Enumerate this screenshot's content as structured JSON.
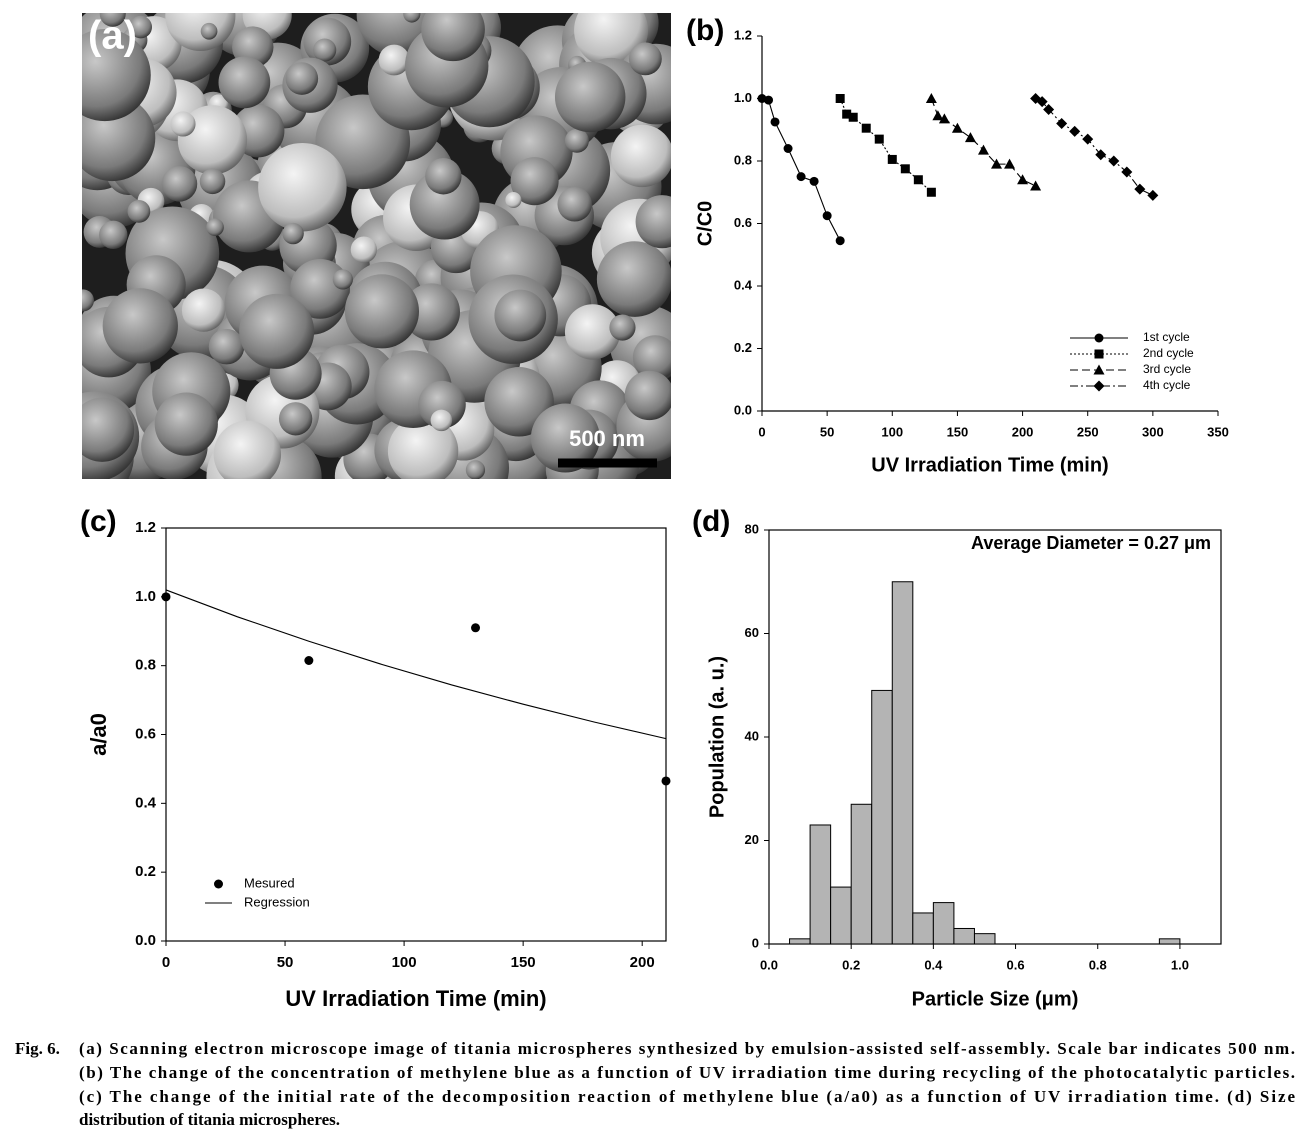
{
  "image": {
    "label": "(a)",
    "scale_bar": "500 nm"
  },
  "chart_data": [
    {
      "type": "line",
      "label": "(b)",
      "x_label": "UV Irradiation Time (min)",
      "y_label": "C/C0",
      "xlim": [
        0,
        350
      ],
      "ylim": [
        0,
        1.2
      ],
      "xticks": [
        0,
        50,
        100,
        150,
        200,
        250,
        300,
        350
      ],
      "yticks": [
        {
          "value": 0,
          "label": "0.0"
        },
        0.2,
        0.4,
        0.6,
        0.8,
        {
          "value": 1,
          "label": "1.0"
        },
        1.2
      ],
      "legend": "lower right",
      "series": [
        {
          "name": "1st cycle",
          "color": "#000000",
          "marker": "circle",
          "line_style": "solid",
          "x": [
            0,
            5,
            10,
            20,
            30,
            40,
            50,
            60
          ],
          "values": [
            1.0,
            0.995,
            0.925,
            0.84,
            0.75,
            0.735,
            0.625,
            0.545
          ]
        },
        {
          "name": "2nd cycle",
          "color": "#000000",
          "marker": "square",
          "line_style": "dotted",
          "x": [
            60,
            65,
            70,
            80,
            90,
            100,
            110,
            120,
            130
          ],
          "values": [
            1.0,
            0.95,
            0.94,
            0.905,
            0.87,
            0.805,
            0.775,
            0.74,
            0.7
          ]
        },
        {
          "name": "3rd cycle",
          "color": "#000000",
          "marker": "triangle",
          "line_style": "dashed",
          "x": [
            130,
            135,
            140,
            150,
            160,
            170,
            180,
            190,
            200,
            210
          ],
          "values": [
            1.0,
            0.945,
            0.935,
            0.905,
            0.875,
            0.835,
            0.79,
            0.79,
            0.74,
            0.72
          ]
        },
        {
          "name": "4th cycle",
          "color": "#000000",
          "marker": "diamond",
          "line_style": "dashdot",
          "x": [
            210,
            215,
            220,
            230,
            240,
            250,
            260,
            270,
            280,
            290,
            300
          ],
          "values": [
            1.0,
            0.99,
            0.965,
            0.92,
            0.895,
            0.87,
            0.82,
            0.8,
            0.765,
            0.71,
            0.69
          ]
        }
      ]
    },
    {
      "type": "line",
      "label": "(c)",
      "x_label": "UV Irradiation Time (min)",
      "y_label": "a/a0",
      "xlim": [
        0,
        210
      ],
      "ylim": [
        0,
        1.2
      ],
      "xticks": [
        0,
        50,
        100,
        150,
        200
      ],
      "yticks": [
        {
          "value": 0,
          "label": "0.0"
        },
        0.2,
        0.4,
        0.6,
        0.8,
        {
          "value": 1,
          "label": "1.0"
        },
        1.2
      ],
      "legend": "lower left",
      "series": [
        {
          "name": "Mesured",
          "color": "#000000",
          "marker": "circle",
          "line_style": "none",
          "x": [
            0,
            60,
            130,
            210
          ],
          "values": [
            1.0,
            0.815,
            0.91,
            0.465
          ]
        },
        {
          "name": "Regression",
          "color": "#000000",
          "marker": "none",
          "line_style": "solid",
          "x": [
            0,
            30,
            60,
            90,
            120,
            150,
            180,
            210
          ],
          "values": [
            1.02,
            0.942,
            0.871,
            0.805,
            0.744,
            0.688,
            0.636,
            0.588
          ]
        }
      ]
    },
    {
      "type": "histogram",
      "label": "(d)",
      "annotation": "Average Diameter = 0.27 μm",
      "x_label": "Particle Size (μm)",
      "y_label": "Population (a. u.)",
      "bins": [
        0.05,
        0.1,
        0.15,
        0.2,
        0.25,
        0.3,
        0.35,
        0.4,
        0.45,
        0.5,
        0.55,
        0.6,
        0.65,
        0.7,
        0.75,
        0.8,
        0.85,
        0.9,
        0.95,
        1.0
      ],
      "values": [
        1,
        23,
        11,
        27,
        49,
        70,
        6,
        8,
        3,
        2,
        0,
        0,
        0,
        0,
        0,
        0,
        0,
        0,
        1
      ],
      "color": "#b4b4b4",
      "xlim": [
        0,
        1.1
      ],
      "ylim": [
        0,
        80
      ],
      "xticks": [
        {
          "value": 0,
          "label": "0.0"
        },
        0.2,
        0.4,
        0.6,
        0.8,
        {
          "value": 1,
          "label": "1.0"
        }
      ],
      "yticks": [
        0,
        20,
        40,
        60,
        80
      ]
    }
  ],
  "caption": {
    "label": "Fig. 6.",
    "lines": [
      "(a) Scanning electron microscope image of titania microspheres synthesized by emulsion-assisted self-assembly. Scale bar indicates 500 nm.",
      "(b) The change of the concentration of methylene blue as a function of UV irradiation time during recycling of the photocatalytic particles.",
      "(c) The change of the initial rate of the decomposition reaction of methylene blue (a/a0) as a function of UV irradiation time. (d) Size",
      "distribution of titania microspheres."
    ]
  }
}
